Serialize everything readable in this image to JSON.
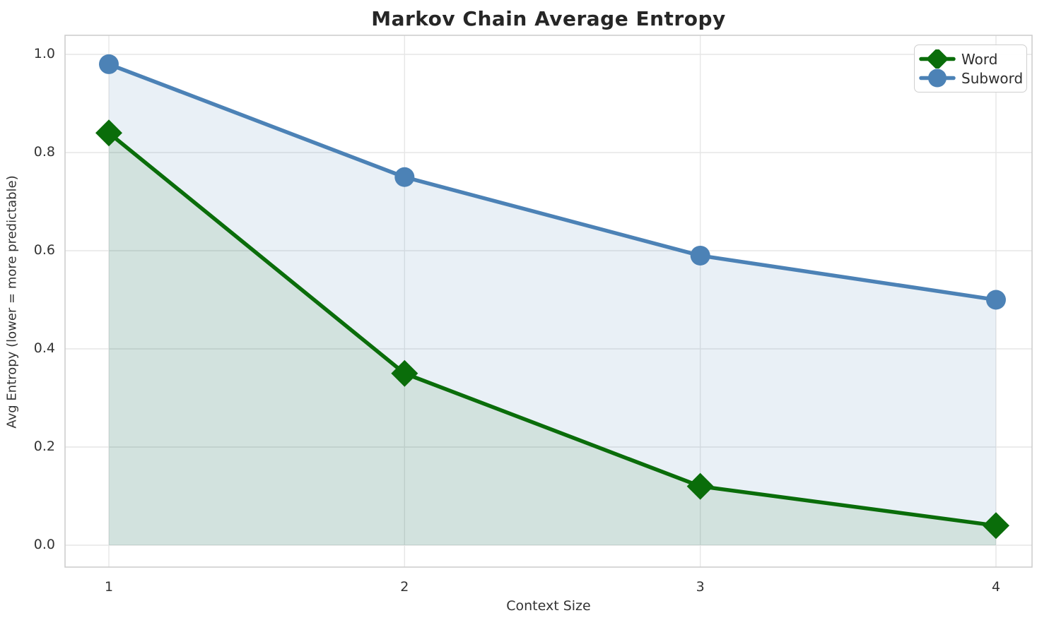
{
  "figure_title": "Markov Chain Average Entropy",
  "chart_data": {
    "type": "line",
    "title": "Markov Chain Average Entropy",
    "xlabel": "Context Size",
    "ylabel": "Avg Entropy (lower = more predictable)",
    "x": [
      1,
      2,
      3,
      4
    ],
    "x_tick_labels": [
      "1",
      "2",
      "3",
      "4"
    ],
    "y_ticks": [
      0.0,
      0.2,
      0.4,
      0.6,
      0.8,
      1.0
    ],
    "y_tick_labels": [
      "0.0",
      "0.2",
      "0.4",
      "0.6",
      "0.8",
      "1.0"
    ],
    "xlim": [
      0.85,
      4.12
    ],
    "ylim": [
      -0.045,
      1.04
    ],
    "grid": true,
    "legend_position": "upper right",
    "area_fill_baseline": 0,
    "series": [
      {
        "name": "Word",
        "marker": "diamond",
        "color": "#0a6d0a",
        "fill_alpha": 0.1,
        "values": [
          0.84,
          0.35,
          0.12,
          0.04
        ]
      },
      {
        "name": "Subword",
        "marker": "circle",
        "color": "#4c82b6",
        "fill_alpha": 0.12,
        "values": [
          0.98,
          0.75,
          0.59,
          0.5
        ]
      }
    ]
  },
  "colors": {
    "background": "#ffffff",
    "gridline": "#e6e6e6",
    "spine": "#cccccc",
    "title_text": "#262626",
    "tick_text": "#333333",
    "word_green": "#0a6d0a",
    "subword_blue": "#4c82b6"
  }
}
